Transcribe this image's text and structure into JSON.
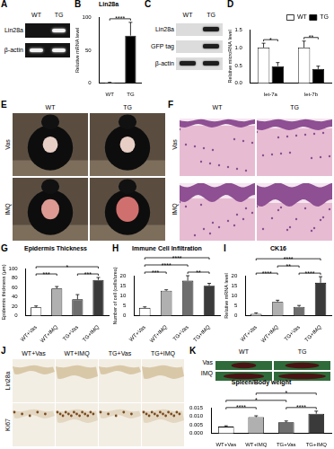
{
  "figure": {
    "A": {
      "panel": "A",
      "lanes": [
        "WT",
        "TG"
      ],
      "rows": [
        "Lin28a",
        "β-actin"
      ]
    },
    "C": {
      "panel": "C",
      "lanes": [
        "WT",
        "TG"
      ],
      "rows": [
        "Lin28a",
        "GFP tag",
        "β-actin"
      ]
    },
    "E": {
      "panel": "E",
      "columns": [
        "WT",
        "TG"
      ],
      "rows": [
        "Vas",
        "IMQ"
      ]
    },
    "F": {
      "panel": "F",
      "columns": [
        "WT",
        "TG"
      ],
      "rows": [
        "Vas",
        "IMQ"
      ]
    },
    "J": {
      "panel": "J",
      "columns": [
        "WT+Vas",
        "WT+IMQ",
        "TG+Vas",
        "TG+IMQ"
      ],
      "rows": [
        "Lin28a",
        "Ki67"
      ]
    },
    "K": {
      "panel": "K",
      "columns": [
        "WT",
        "TG"
      ],
      "rows": [
        "Vas",
        "IMQ"
      ]
    }
  },
  "chart_data": [
    {
      "panel": "B",
      "type": "bar",
      "title": "Lin28a",
      "y_label": "Relative mRNA level",
      "categories": [
        "WT",
        "TG"
      ],
      "values": [
        1,
        72
      ],
      "errors": [
        0.5,
        20
      ],
      "colors": [
        "#ffffff",
        "#000000"
      ],
      "ylim": [
        0,
        100
      ],
      "yticks": [
        0,
        50,
        100
      ],
      "grid": false,
      "annotations": [
        {
          "between": [
            "WT",
            "TG"
          ],
          "label": "****"
        }
      ]
    },
    {
      "panel": "D",
      "type": "bar",
      "y_label": "Relative microRNA level",
      "categories": [
        "let-7a",
        "let-7b"
      ],
      "series": [
        {
          "name": "WT",
          "color": "#ffffff",
          "values": [
            1.0,
            1.0
          ],
          "errors": [
            0.12,
            0.18
          ]
        },
        {
          "name": "TG",
          "color": "#000000",
          "values": [
            0.48,
            0.4
          ],
          "errors": [
            0.1,
            0.08
          ]
        }
      ],
      "ylim": [
        0,
        1.5
      ],
      "yticks": [
        {
          "value": 0,
          "label": "0.0"
        },
        0.5,
        {
          "value": 1,
          "label": "1.0"
        },
        1.5
      ],
      "legend": "top-right",
      "grid": false,
      "annotations": [
        {
          "category": "let-7a",
          "label": "*"
        },
        {
          "category": "let-7b",
          "label": "**"
        }
      ]
    },
    {
      "panel": "G",
      "type": "bar",
      "title": "Epidermis Thickness",
      "y_label": "Epidermis thickness (μm)",
      "categories": [
        "WT+Vas",
        "WT+IMQ",
        "TG+Vas",
        "TG+IMQ"
      ],
      "values": [
        18,
        58,
        35,
        76
      ],
      "errors": [
        3,
        4,
        10,
        5
      ],
      "colors": [
        "#ffffff",
        "#b0b0b0",
        "#6e6e6e",
        "#3a3a3a"
      ],
      "ylim": [
        0,
        100
      ],
      "yticks": [
        0,
        20,
        40,
        60,
        80,
        100
      ],
      "grid": false,
      "annotations": [
        {
          "between": [
            "WT+Vas",
            "WT+IMQ"
          ],
          "label": "***"
        },
        {
          "between": [
            "TG+Vas",
            "TG+IMQ"
          ],
          "label": "***"
        },
        {
          "between": [
            "WT+Vas",
            "TG+IMQ"
          ],
          "label": "*"
        }
      ]
    },
    {
      "panel": "H",
      "type": "bar",
      "title": "Immune Cell Infiltration",
      "y_label": "Number of cell (cells/area)",
      "categories": [
        "WT+Vas",
        "WT+IMQ",
        "TG+Vas",
        "TG+IMQ"
      ],
      "values": [
        4,
        12.5,
        17.5,
        15
      ],
      "errors": [
        0.5,
        0.5,
        2.5,
        1.2
      ],
      "colors": [
        "#ffffff",
        "#b0b0b0",
        "#6e6e6e",
        "#3a3a3a"
      ],
      "ylim": [
        0,
        20
      ],
      "yticks": [
        0,
        5,
        10,
        15,
        20
      ],
      "grid": false,
      "annotations": [
        {
          "between": [
            "WT+Vas",
            "WT+IMQ"
          ],
          "label": "***"
        },
        {
          "between": [
            "TG+Vas",
            "TG+IMQ"
          ],
          "label": "**"
        },
        {
          "between": [
            "WT+Vas",
            "TG+Vas"
          ],
          "label": "****"
        },
        {
          "between": [
            "WT+Vas",
            "TG+IMQ"
          ],
          "label": "****"
        }
      ]
    },
    {
      "panel": "I",
      "type": "bar",
      "title": "CK16",
      "y_label": "Relative mRNA level",
      "categories": [
        "WT+Vas",
        "WT+IMQ",
        "TG+Vas",
        "TG+IMQ"
      ],
      "values": [
        1,
        7,
        4.5,
        16.5
      ],
      "errors": [
        0.5,
        0.8,
        0.7,
        3
      ],
      "colors": [
        "#ffffff",
        "#b0b0b0",
        "#6e6e6e",
        "#3a3a3a"
      ],
      "ylim": [
        0,
        20
      ],
      "yticks": [
        0,
        5,
        10,
        15,
        20
      ],
      "grid": false,
      "annotations": [
        {
          "between": [
            "WT+Vas",
            "WT+IMQ"
          ],
          "label": "****"
        },
        {
          "between": [
            "TG+Vas",
            "TG+IMQ"
          ],
          "label": "****"
        },
        {
          "between": [
            "WT+IMQ",
            "TG+Vas"
          ],
          "label": "**"
        },
        {
          "between": [
            "WT+Vas",
            "TG+IMQ"
          ],
          "label": "****"
        }
      ]
    },
    {
      "type": "bar",
      "title": "Spleen/Body weight",
      "categories": [
        "WT+Vas",
        "WT+IMQ",
        "TG+Vas",
        "TG+IMQ"
      ],
      "values": [
        0.004,
        0.0095,
        0.0065,
        0.0115
      ],
      "errors": [
        0.0005,
        0.0008,
        0.0008,
        0.0015
      ],
      "colors": [
        "#ffffff",
        "#b0b0b0",
        "#6e6e6e",
        "#3a3a3a"
      ],
      "ylim": [
        0,
        0.015
      ],
      "yticks": [
        {
          "value": 0,
          "label": "0.000"
        },
        {
          "value": 0.005,
          "label": "0.005"
        },
        {
          "value": 0.01,
          "label": "0.010"
        },
        {
          "value": 0.015,
          "label": "0.015"
        }
      ],
      "grid": false,
      "annotations": [
        {
          "between": [
            "WT+Vas",
            "WT+IMQ"
          ],
          "label": "****"
        },
        {
          "between": [
            "TG+Vas",
            "TG+IMQ"
          ],
          "label": "****"
        },
        {
          "between": [
            "WT+Vas",
            "TG+Vas"
          ],
          "label": "*"
        },
        {
          "between": [
            "WT+IMQ",
            "TG+IMQ"
          ],
          "label": "*"
        }
      ]
    }
  ]
}
